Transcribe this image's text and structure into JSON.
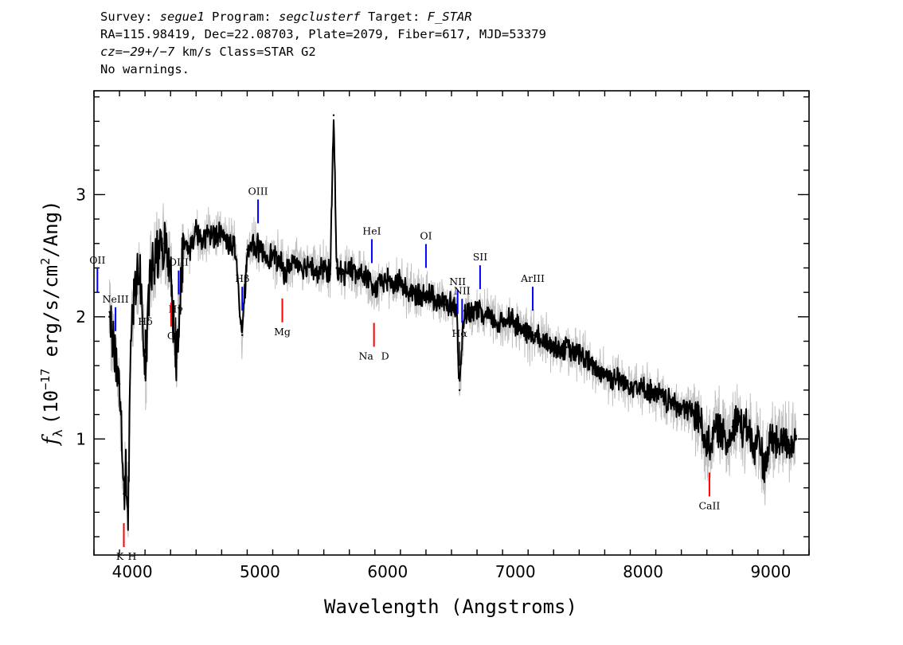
{
  "header": {
    "line1": {
      "survey_label": "Survey: ",
      "survey": "segue1",
      "program_label": " Program: ",
      "program": "segclusterf",
      "target_label": " Target: ",
      "target": "F_STAR"
    },
    "line2": "RA=115.98419, Dec=22.08703, Plate=2079, Fiber=617, MJD=53379",
    "line3": {
      "cz_label": "cz",
      "cz_eq": "=",
      "cz_value": "−29+/−7",
      "cz_rest": " km/s Class=STAR G2"
    },
    "line4": "No warnings."
  },
  "chart_data": {
    "type": "line",
    "title": "",
    "xlabel": "Wavelength (Angstroms)",
    "ylabel": "fλ (10⁻¹⁷ erg/s/cm²/Ang)",
    "ylabel_parts": {
      "f": "f",
      "lambda": "λ",
      "pre": "(10",
      "exp1": "−17",
      "mid": " erg/s/cm",
      "exp2": "2",
      "post": "/Ang)"
    },
    "xlim": [
      3700,
      9300
    ],
    "ylim": [
      0.05,
      3.85
    ],
    "x_ticks": [
      4000,
      5000,
      6000,
      7000,
      8000,
      9000
    ],
    "y_ticks": [
      1,
      2,
      3
    ],
    "grid": false,
    "colors": {
      "spectrum": "#000000",
      "error": "#c0c0c0",
      "emission": "#0000ff",
      "absorption": "#ff0000",
      "balmer": "#000000"
    },
    "series": [
      {
        "role": "spectrum",
        "x": [
          3820,
          3860,
          3900,
          3934,
          3950,
          3968,
          3990,
          4020,
          4060,
          4102,
          4140,
          4200,
          4250,
          4300,
          4340,
          4400,
          4450,
          4500,
          4550,
          4600,
          4650,
          4700,
          4750,
          4800,
          4861,
          4900,
          4950,
          5000,
          5050,
          5100,
          5150,
          5200,
          5250,
          5300,
          5350,
          5400,
          5450,
          5500,
          5550,
          5577,
          5600,
          5650,
          5700,
          5750,
          5800,
          5850,
          5893,
          5950,
          6000,
          6050,
          6100,
          6150,
          6200,
          6250,
          6300,
          6350,
          6400,
          6450,
          6500,
          6540,
          6563,
          6600,
          6650,
          6700,
          6750,
          6800,
          6850,
          6900,
          6950,
          7000,
          7050,
          7100,
          7150,
          7200,
          7250,
          7300,
          7350,
          7400,
          7450,
          7500,
          7550,
          7600,
          7650,
          7700,
          7750,
          7800,
          7850,
          7900,
          7950,
          8000,
          8050,
          8100,
          8150,
          8200,
          8250,
          8300,
          8350,
          8400,
          8450,
          8498,
          8542,
          8580,
          8620,
          8662,
          8700,
          8740,
          8780,
          8830,
          8870,
          8900,
          8950,
          9000,
          9050,
          9100,
          9150,
          9200
        ],
        "y": [
          2.0,
          1.75,
          1.45,
          0.55,
          0.7,
          0.45,
          1.8,
          2.25,
          2.4,
          1.5,
          2.35,
          2.5,
          2.6,
          2.45,
          1.6,
          2.6,
          2.55,
          2.7,
          2.6,
          2.7,
          2.65,
          2.7,
          2.6,
          2.6,
          1.85,
          2.55,
          2.6,
          2.55,
          2.5,
          2.5,
          2.45,
          2.35,
          2.45,
          2.45,
          2.4,
          2.45,
          2.35,
          2.4,
          2.35,
          3.65,
          2.4,
          2.35,
          2.4,
          2.35,
          2.35,
          2.3,
          2.2,
          2.3,
          2.3,
          2.25,
          2.3,
          2.2,
          2.2,
          2.15,
          2.2,
          2.15,
          2.15,
          2.1,
          2.1,
          2.05,
          1.4,
          2.05,
          2.0,
          2.05,
          2.0,
          2.0,
          1.95,
          1.95,
          2.0,
          1.95,
          1.9,
          1.85,
          1.85,
          1.8,
          1.8,
          1.75,
          1.75,
          1.75,
          1.7,
          1.7,
          1.65,
          1.6,
          1.55,
          1.55,
          1.5,
          1.5,
          1.45,
          1.45,
          1.45,
          1.4,
          1.4,
          1.35,
          1.35,
          1.3,
          1.3,
          1.25,
          1.25,
          1.2,
          1.15,
          0.95,
          1.0,
          1.1,
          1.05,
          0.95,
          1.1,
          1.2,
          1.05,
          1.1,
          0.85,
          1.05,
          0.75,
          1.0,
          0.95,
          1.0,
          0.95,
          1.0
        ]
      }
    ],
    "lines": [
      {
        "label": "OII",
        "x": 3727,
        "type": "emission"
      },
      {
        "label": "NeIII",
        "x": 3869,
        "type": "emission"
      },
      {
        "label": "Hδ",
        "x": 4102,
        "type": "balmer"
      },
      {
        "label": "Hγ",
        "x": 4340,
        "type": "balmer"
      },
      {
        "label": "OIII",
        "x": 4363,
        "type": "emission"
      },
      {
        "label": "Hβ",
        "x": 4861,
        "type": "emission"
      },
      {
        "label": "OIII",
        "x": 4985,
        "type": "emission"
      },
      {
        "label": "HeI",
        "x": 5876,
        "type": "emission"
      },
      {
        "label": "OI",
        "x": 6300,
        "type": "emission"
      },
      {
        "label": "NII",
        "x": 6548,
        "type": "emission"
      },
      {
        "label": "Hα",
        "x": 6563,
        "type": "balmer"
      },
      {
        "label": "NII",
        "x": 6583,
        "type": "emission"
      },
      {
        "label": "SII",
        "x": 6724,
        "type": "emission"
      },
      {
        "label": "ArIII",
        "x": 7136,
        "type": "emission"
      },
      {
        "label": "K",
        "x": 3934,
        "type": "absorption"
      },
      {
        "label": "H",
        "x": 3968,
        "type": "absorption"
      },
      {
        "label": "G",
        "x": 4304,
        "type": "absorption"
      },
      {
        "label": "Mg",
        "x": 5175,
        "type": "absorption"
      },
      {
        "label": "Na",
        "x": 5893,
        "type": "absorption"
      },
      {
        "label": "D",
        "x": 5893,
        "type": "absorption"
      },
      {
        "label": "CaII",
        "x": 8520,
        "type": "absorption"
      }
    ]
  }
}
